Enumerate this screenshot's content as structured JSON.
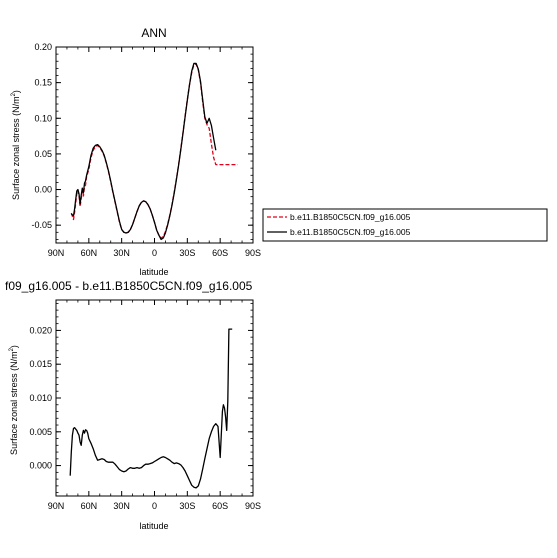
{
  "chart_data": [
    {
      "type": "line",
      "title": "ANN",
      "xlabel": "latitude",
      "ylabel": "Surface zonal stress (N/m",
      "ylabel_sup": "2",
      "ylabel_tail": ")",
      "xlim": [
        90,
        -90
      ],
      "ylim": [
        -0.075,
        0.2
      ],
      "x_ticks": [
        90,
        60,
        30,
        0,
        -30,
        -60,
        -90
      ],
      "x_tick_labels": [
        "90N",
        "60N",
        "30N",
        "0",
        "30S",
        "60S",
        "90S"
      ],
      "y_ticks": [
        0.2,
        0.15,
        0.1,
        0.05,
        0.0,
        -0.05
      ],
      "y_tick_labels": [
        "0.20",
        "0.15",
        "0.10",
        "0.05",
        "0.00",
        "-0.05"
      ],
      "grid": false,
      "legend_position": "right",
      "series": [
        {
          "name": "b.e11.B1850C5CN.f09_g16.005",
          "color": "#e0001b",
          "dash": "dashed",
          "x": [
            76,
            74,
            73,
            72,
            71,
            70,
            69,
            68,
            67,
            66,
            65,
            64,
            63,
            62,
            60,
            58,
            56,
            54,
            52,
            50,
            48,
            46,
            44,
            42,
            40,
            38,
            36,
            34,
            32,
            30,
            28,
            26,
            24,
            22,
            20,
            18,
            16,
            14,
            12,
            10,
            8,
            6,
            4,
            2,
            0,
            -2,
            -4,
            -6,
            -8,
            -10,
            -12,
            -14,
            -16,
            -18,
            -20,
            -22,
            -24,
            -26,
            -28,
            -30,
            -32,
            -34,
            -36,
            -38,
            -40,
            -42,
            -44,
            -46,
            -48,
            -50,
            -52,
            -54,
            -56,
            -58,
            -60,
            -62,
            -64,
            -66,
            -68,
            -70,
            -72,
            -74,
            -76
          ],
          "values": [
            -0.033,
            -0.042,
            -0.032,
            -0.019,
            -0.006,
            -0.001,
            -0.008,
            -0.024,
            -0.013,
            -0.002,
            -0.009,
            0.004,
            0.006,
            0.018,
            0.028,
            0.045,
            0.055,
            0.06,
            0.062,
            0.059,
            0.054,
            0.047,
            0.037,
            0.025,
            0.011,
            -0.004,
            -0.018,
            -0.032,
            -0.046,
            -0.056,
            -0.06,
            -0.061,
            -0.06,
            -0.056,
            -0.049,
            -0.04,
            -0.031,
            -0.023,
            -0.018,
            -0.016,
            -0.017,
            -0.021,
            -0.027,
            -0.036,
            -0.046,
            -0.057,
            -0.064,
            -0.068,
            -0.066,
            -0.059,
            -0.049,
            -0.036,
            -0.021,
            -0.004,
            0.015,
            0.035,
            0.057,
            0.08,
            0.103,
            0.126,
            0.147,
            0.164,
            0.175,
            0.176,
            0.168,
            0.15,
            0.123,
            0.1,
            0.091,
            0.086,
            0.064,
            0.045,
            0.035,
            0.035,
            0.035,
            0.035,
            0.035,
            0.035,
            0.035,
            0.035,
            0.035,
            0.035,
            0.035
          ]
        },
        {
          "name": "b.e11.B1850C5CN.f09_g16.005",
          "color": "#000000",
          "dash": "solid",
          "x": [
            76,
            74,
            73,
            72,
            71,
            70,
            69,
            68,
            67,
            66,
            65,
            64,
            63,
            62,
            60,
            58,
            56,
            54,
            52,
            50,
            48,
            46,
            44,
            42,
            40,
            38,
            36,
            34,
            32,
            30,
            28,
            26,
            24,
            22,
            20,
            18,
            16,
            14,
            12,
            10,
            8,
            6,
            4,
            2,
            0,
            -2,
            -4,
            -6,
            -8,
            -10,
            -12,
            -14,
            -16,
            -18,
            -20,
            -22,
            -24,
            -26,
            -28,
            -30,
            -32,
            -34,
            -36,
            -38,
            -40,
            -42,
            -44,
            -46,
            -48,
            -50,
            -52,
            -54,
            -56
          ],
          "values": [
            -0.034,
            -0.037,
            -0.027,
            -0.014,
            -0.002,
            0.0,
            -0.006,
            -0.02,
            -0.008,
            0.002,
            -0.005,
            0.009,
            0.012,
            0.02,
            0.032,
            0.048,
            0.058,
            0.062,
            0.063,
            0.06,
            0.055,
            0.048,
            0.038,
            0.026,
            0.012,
            -0.003,
            -0.017,
            -0.031,
            -0.045,
            -0.056,
            -0.06,
            -0.061,
            -0.06,
            -0.056,
            -0.049,
            -0.04,
            -0.031,
            -0.023,
            -0.018,
            -0.016,
            -0.017,
            -0.021,
            -0.027,
            -0.036,
            -0.046,
            -0.057,
            -0.064,
            -0.07,
            -0.068,
            -0.061,
            -0.05,
            -0.037,
            -0.022,
            -0.005,
            0.014,
            0.034,
            0.056,
            0.079,
            0.102,
            0.125,
            0.147,
            0.166,
            0.177,
            0.177,
            0.169,
            0.152,
            0.126,
            0.102,
            0.093,
            0.1,
            0.09,
            0.072,
            0.055
          ]
        }
      ]
    },
    {
      "type": "line",
      "title": "f09_g16.005 - b.e11.B1850C5CN.f09_g16.005",
      "xlabel": "latitude",
      "ylabel": "Surface zonal stress (N/m",
      "ylabel_sup": "2",
      "ylabel_tail": ")",
      "xlim": [
        90,
        -90
      ],
      "ylim": [
        -0.0045,
        0.0245
      ],
      "x_ticks": [
        90,
        60,
        30,
        0,
        -30,
        -60,
        -90
      ],
      "x_tick_labels": [
        "90N",
        "60N",
        "30N",
        "0",
        "30S",
        "60S",
        "90S"
      ],
      "y_ticks": [
        0.02,
        0.015,
        0.01,
        0.005,
        0.0
      ],
      "y_tick_labels": [
        "0.020",
        "0.015",
        "0.010",
        "0.005",
        "0.000"
      ],
      "grid": false,
      "series": [
        {
          "color": "#000000",
          "dash": "solid",
          "x": [
            77,
            76,
            75,
            74,
            73,
            72,
            71,
            70,
            69,
            68,
            67,
            66,
            65,
            64,
            63,
            62,
            61,
            60,
            58,
            56,
            54,
            52,
            50,
            48,
            46,
            44,
            42,
            40,
            38,
            36,
            34,
            32,
            30,
            28,
            26,
            24,
            22,
            20,
            18,
            16,
            14,
            12,
            10,
            8,
            6,
            4,
            2,
            0,
            -2,
            -4,
            -6,
            -8,
            -10,
            -12,
            -14,
            -16,
            -18,
            -20,
            -22,
            -24,
            -26,
            -28,
            -30,
            -32,
            -34,
            -36,
            -38,
            -40,
            -42,
            -44,
            -46,
            -48,
            -50,
            -52,
            -54,
            -56,
            -58,
            -60,
            -62,
            -63,
            -64,
            -65,
            -66,
            -67,
            -68,
            -69,
            -70,
            -71
          ],
          "values": [
            -0.0015,
            0.002,
            0.0045,
            0.0055,
            0.0056,
            0.0054,
            0.0052,
            0.0048,
            0.0045,
            0.0035,
            0.003,
            0.0045,
            0.0052,
            0.0048,
            0.0053,
            0.0052,
            0.0048,
            0.004,
            0.0033,
            0.0025,
            0.0015,
            0.0008,
            0.0009,
            0.001,
            0.0009,
            0.0006,
            0.0005,
            0.0005,
            0.0005,
            0.0002,
            -0.0002,
            -0.0006,
            -0.0008,
            -0.0009,
            -0.0008,
            -0.0005,
            -0.0003,
            -0.0004,
            -0.0004,
            -0.0003,
            -0.0004,
            -0.0003,
            0.0,
            0.0002,
            0.0002,
            0.0003,
            0.0004,
            0.0006,
            0.0008,
            0.001,
            0.0012,
            0.0013,
            0.0012,
            0.001,
            0.0008,
            0.0005,
            0.0003,
            0.0004,
            0.0003,
            0.0001,
            -0.0003,
            -0.0008,
            -0.0015,
            -0.0022,
            -0.0029,
            -0.0032,
            -0.0033,
            -0.003,
            -0.002,
            -0.0005,
            0.001,
            0.0025,
            0.004,
            0.005,
            0.0058,
            0.0062,
            0.0058,
            0.0012,
            0.008,
            0.009,
            0.0085,
            0.0072,
            0.0052,
            0.0095,
            0.0202,
            0.0202,
            0.0202,
            0.0202
          ]
        }
      ]
    }
  ]
}
